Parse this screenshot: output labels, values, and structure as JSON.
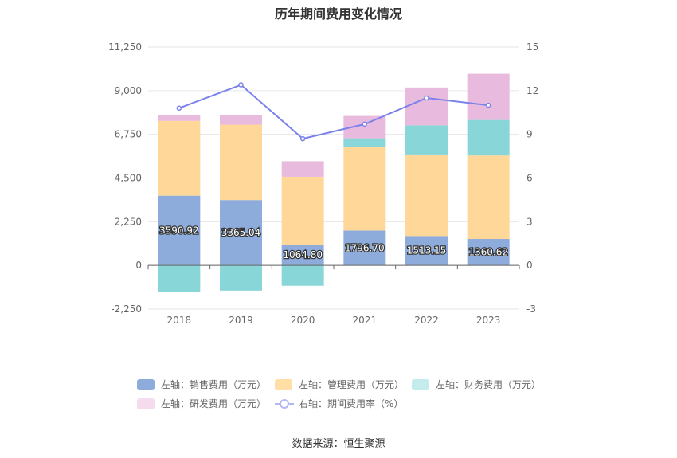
{
  "title": "历年期间费用变化情况",
  "source": "数据来源：恒生聚源",
  "legend": [
    {
      "label": "左轴：销售费用（万元）",
      "color": "#8eacdb",
      "type": "bar"
    },
    {
      "label": "左轴：管理费用（万元）",
      "color": "#ffdfa6",
      "type": "bar"
    },
    {
      "label": "左轴：财务费用（万元）",
      "color": "#c5ecec",
      "type": "bar"
    },
    {
      "label": "左轴：研发费用（万元）",
      "color": "#f4dcee",
      "type": "bar"
    },
    {
      "label": "右轴：期间费用率（%）",
      "color": "#7b83eb",
      "type": "line"
    }
  ],
  "chart_data": {
    "type": "bar",
    "categories": [
      "2018",
      "2019",
      "2020",
      "2021",
      "2022",
      "2023"
    ],
    "series": [
      {
        "name": "左轴：销售费用（万元）",
        "axis": "left",
        "color": "#8eacdb",
        "values": [
          3590.92,
          3365.04,
          1064.8,
          1796.7,
          1513.15,
          1360.62
        ]
      },
      {
        "name": "左轴：管理费用（万元）",
        "axis": "left",
        "color": "#ffd899",
        "values": [
          3850,
          3880,
          3500,
          4300,
          4200,
          4300
        ]
      },
      {
        "name": "左轴：财务费用（万元）",
        "axis": "left",
        "color": "#88d6d8",
        "values": [
          -1350,
          -1300,
          -1050,
          450,
          1500,
          1830
        ]
      },
      {
        "name": "左轴：研发费用（万元）",
        "axis": "left",
        "color": "#e8bade",
        "values": [
          280,
          480,
          800,
          1150,
          1950,
          2380
        ]
      },
      {
        "name": "右轴：期间费用率（%）",
        "axis": "right",
        "type": "line",
        "color": "#7b83eb",
        "values": [
          10.8,
          12.4,
          8.7,
          9.7,
          11.5,
          11.0
        ]
      }
    ],
    "data_labels": [
      "3590.92",
      "3365.04",
      "1064.80",
      "1796.70",
      "1513.15",
      "1360.62"
    ],
    "y_left": {
      "ticks": [
        "11,250",
        "9,000",
        "6,750",
        "4,500",
        "2,250",
        "0",
        "-2,250"
      ],
      "tick_values": [
        11250,
        9000,
        6750,
        4500,
        2250,
        0,
        -2250
      ],
      "ylim": [
        -2250,
        11250
      ]
    },
    "y_right": {
      "ticks": [
        "15",
        "12",
        "9",
        "6",
        "3",
        "0",
        "-3"
      ],
      "tick_values": [
        15,
        12,
        9,
        6,
        3,
        0,
        -3
      ],
      "ylim": [
        -3,
        15
      ]
    },
    "grid": true,
    "legend_position": "bottom"
  }
}
